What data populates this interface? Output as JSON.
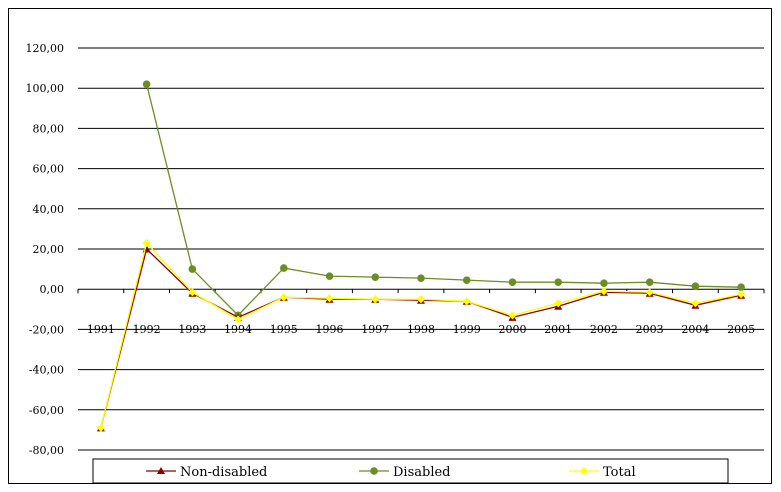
{
  "chart_data": {
    "type": "line",
    "categories": [
      "1991",
      "1992",
      "1993",
      "1994",
      "1995",
      "1996",
      "1997",
      "1998",
      "1999",
      "2000",
      "2001",
      "2002",
      "2003",
      "2004",
      "2005"
    ],
    "ylim": [
      -80,
      120
    ],
    "yticks": [
      -80,
      -60,
      -40,
      -20,
      0,
      20,
      40,
      60,
      80,
      100,
      120
    ],
    "ytick_labels": [
      "-80,00",
      "-60,00",
      "-40,00",
      "-20,00",
      "0,00",
      "20,00",
      "40,00",
      "60,00",
      "80,00",
      "100,00",
      "120,00"
    ],
    "grid": "horizontal",
    "legend_position": "bottom",
    "series": [
      {
        "name": "Non-disabled",
        "color": "#8B0000",
        "marker": "triangle",
        "values": [
          -69,
          20,
          -2,
          -14,
          -4,
          -5,
          -5,
          -5.5,
          -6,
          -14,
          -8.5,
          -1.5,
          -2,
          -8,
          -3
        ]
      },
      {
        "name": "Disabled",
        "color": "#6B8E23",
        "marker": "circle",
        "values": [
          null,
          102,
          10,
          -13,
          10.5,
          6.5,
          6,
          5.5,
          4.5,
          3.5,
          3.5,
          3,
          3.5,
          1.5,
          1
        ]
      },
      {
        "name": "Total",
        "color": "#FFFF00",
        "marker": "diamond",
        "values": [
          -69,
          23,
          -1.5,
          -15,
          -4,
          -4.5,
          -5,
          -5,
          -6,
          -13,
          -7,
          -1,
          -1.5,
          -7,
          -2.5
        ]
      }
    ]
  }
}
